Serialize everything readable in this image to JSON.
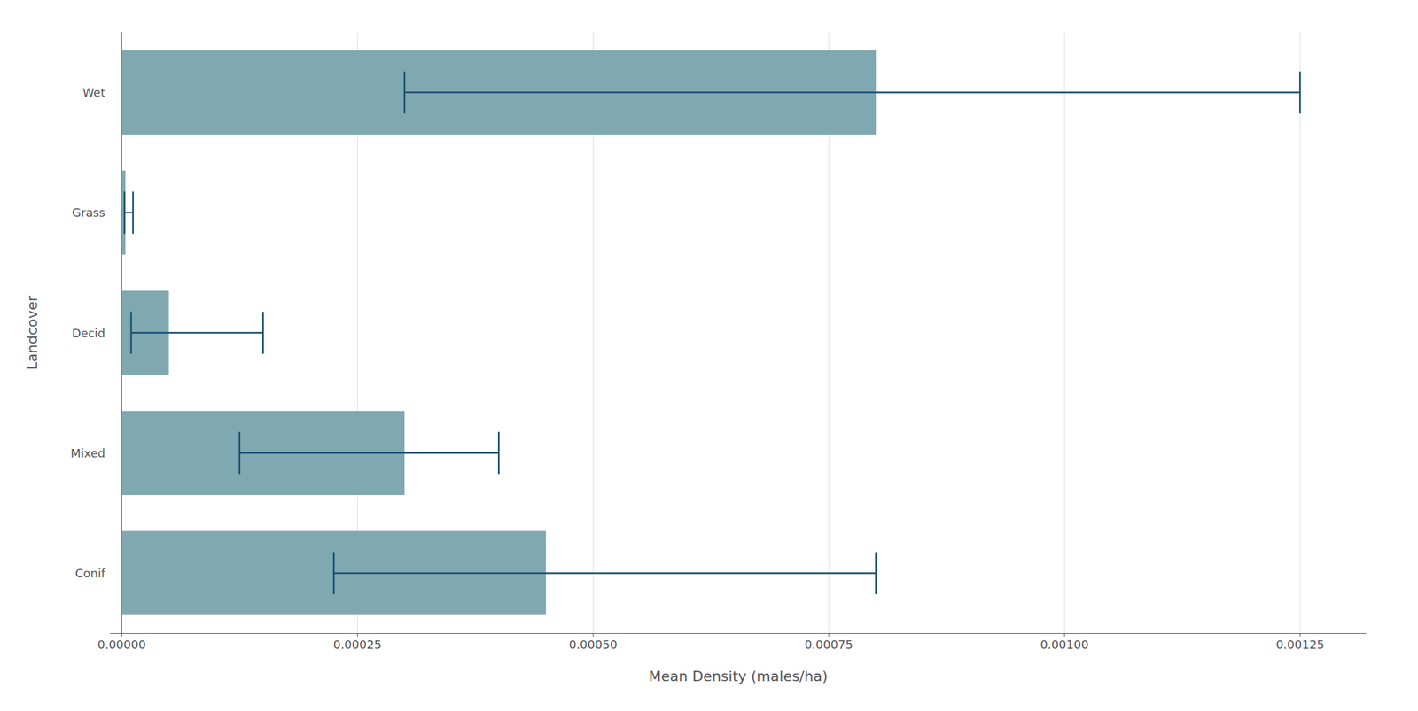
{
  "chart_data": {
    "type": "bar",
    "orientation": "horizontal",
    "categories": [
      "Conif",
      "Mixed",
      "Decid",
      "Grass",
      "Wet"
    ],
    "values": [
      0.00045,
      0.0003,
      5e-05,
      4e-06,
      0.0008
    ],
    "color": "#7fa8b0",
    "error_bars": {
      "low": [
        0.000225,
        0.000125,
        1e-05,
        3e-06,
        0.0003
      ],
      "high": [
        0.0008,
        0.0004,
        0.00015,
        1.2e-05,
        0.00125
      ],
      "color": "#1b4f72"
    },
    "xlabel": "Mean Density (males/ha)",
    "ylabel": "Landcover",
    "xlim": [
      -1.2e-05,
      0.00132
    ],
    "xticks": [
      {
        "value": 0,
        "label": "0.00000"
      },
      {
        "value": 0.00025,
        "label": "0.00025"
      },
      {
        "value": 0.0005,
        "label": "0.00050"
      },
      {
        "value": 0.00075,
        "label": "0.00075"
      },
      {
        "value": 0.001,
        "label": "0.00100"
      },
      {
        "value": 0.00125,
        "label": "0.00125"
      }
    ],
    "grid": true
  }
}
